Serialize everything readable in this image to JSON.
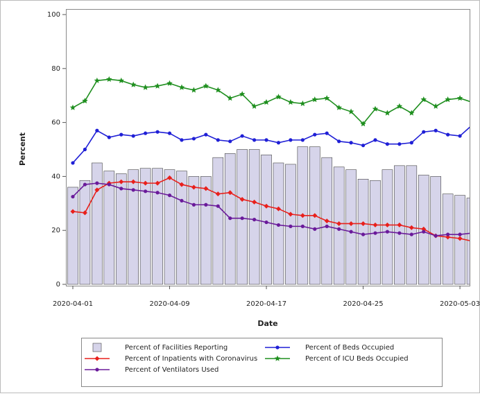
{
  "chart_data": {
    "type": "combo",
    "x": [
      "2020-04-01",
      "2020-04-02",
      "2020-04-03",
      "2020-04-04",
      "2020-04-05",
      "2020-04-06",
      "2020-04-07",
      "2020-04-08",
      "2020-04-09",
      "2020-04-10",
      "2020-04-11",
      "2020-04-12",
      "2020-04-13",
      "2020-04-14",
      "2020-04-15",
      "2020-04-16",
      "2020-04-17",
      "2020-04-18",
      "2020-04-19",
      "2020-04-20",
      "2020-04-21",
      "2020-04-22",
      "2020-04-23",
      "2020-04-24",
      "2020-04-25",
      "2020-04-26",
      "2020-04-27",
      "2020-04-28",
      "2020-04-29",
      "2020-04-30",
      "2020-05-01",
      "2020-05-02",
      "2020-05-03",
      "2020-05-04"
    ],
    "xticks": [
      "2020-04-01",
      "2020-04-09",
      "2020-04-17",
      "2020-04-25",
      "2020-05-03"
    ],
    "x_label": "Date",
    "y_label": "Percent",
    "ylim": [
      0,
      100
    ],
    "yticks": [
      0,
      20,
      40,
      60,
      80,
      100
    ],
    "series": [
      {
        "name": "Percent of Facilities Reporting",
        "kind": "bar",
        "color": "#d6d4ea",
        "values": [
          36,
          38.5,
          45,
          42,
          41,
          42.5,
          43,
          43,
          42.5,
          42,
          40,
          40,
          47,
          48.5,
          50,
          50,
          48,
          45,
          44.5,
          51,
          51,
          47,
          43.5,
          42.5,
          39,
          38.5,
          42.5,
          44,
          44,
          40.5,
          40,
          33.5,
          33,
          32
        ]
      },
      {
        "name": "Percent of Beds Occupied",
        "kind": "line",
        "marker": "circle",
        "color": "#1f1fd6",
        "values": [
          45,
          50,
          57,
          54.5,
          55.5,
          55,
          56,
          56.5,
          56,
          53.5,
          54,
          55.5,
          53.5,
          53,
          55,
          53.5,
          53.5,
          52.5,
          53.5,
          53.5,
          55.5,
          56,
          53,
          52.5,
          51.5,
          53.5,
          52,
          52,
          52.5,
          56.5,
          57,
          55.5,
          55,
          59
        ]
      },
      {
        "name": "Percent of Inpatients with Coronavirus",
        "kind": "line",
        "marker": "diamond",
        "color": "#e8201c",
        "values": [
          27,
          26.5,
          35,
          37.5,
          38,
          38,
          37.5,
          37.5,
          39.5,
          37,
          36,
          35.5,
          33.5,
          34,
          31.5,
          30.5,
          29,
          28,
          26,
          25.5,
          25.5,
          23.5,
          22.5,
          22.5,
          22.5,
          22,
          22,
          22,
          21,
          20.5,
          18,
          17.5,
          17,
          16
        ]
      },
      {
        "name": "Percent of ICU Beds Occupied",
        "kind": "line",
        "marker": "star",
        "color": "#1f8f1f",
        "values": [
          65.5,
          68,
          75.5,
          76,
          75.5,
          74,
          73,
          73.5,
          74.5,
          73,
          72,
          73.5,
          72,
          69,
          70.5,
          66,
          67.5,
          69.5,
          67.5,
          67,
          68.5,
          69,
          65.5,
          64,
          59.5,
          65,
          63.5,
          66,
          63.5,
          68.5,
          66,
          68.5,
          69,
          67.5
        ]
      },
      {
        "name": "Percent of Ventilators Used",
        "kind": "line",
        "marker": "circle",
        "color": "#6a1a9a",
        "values": [
          32.5,
          37,
          37.5,
          37,
          35.5,
          35,
          34.5,
          34,
          33,
          31,
          29.5,
          29.5,
          29,
          24.5,
          24.5,
          24,
          23,
          22,
          21.5,
          21.5,
          20.5,
          21.5,
          20.5,
          19.5,
          18.5,
          19,
          19.5,
          19,
          18.5,
          19.5,
          18,
          18.5,
          18.5,
          19
        ]
      }
    ]
  }
}
